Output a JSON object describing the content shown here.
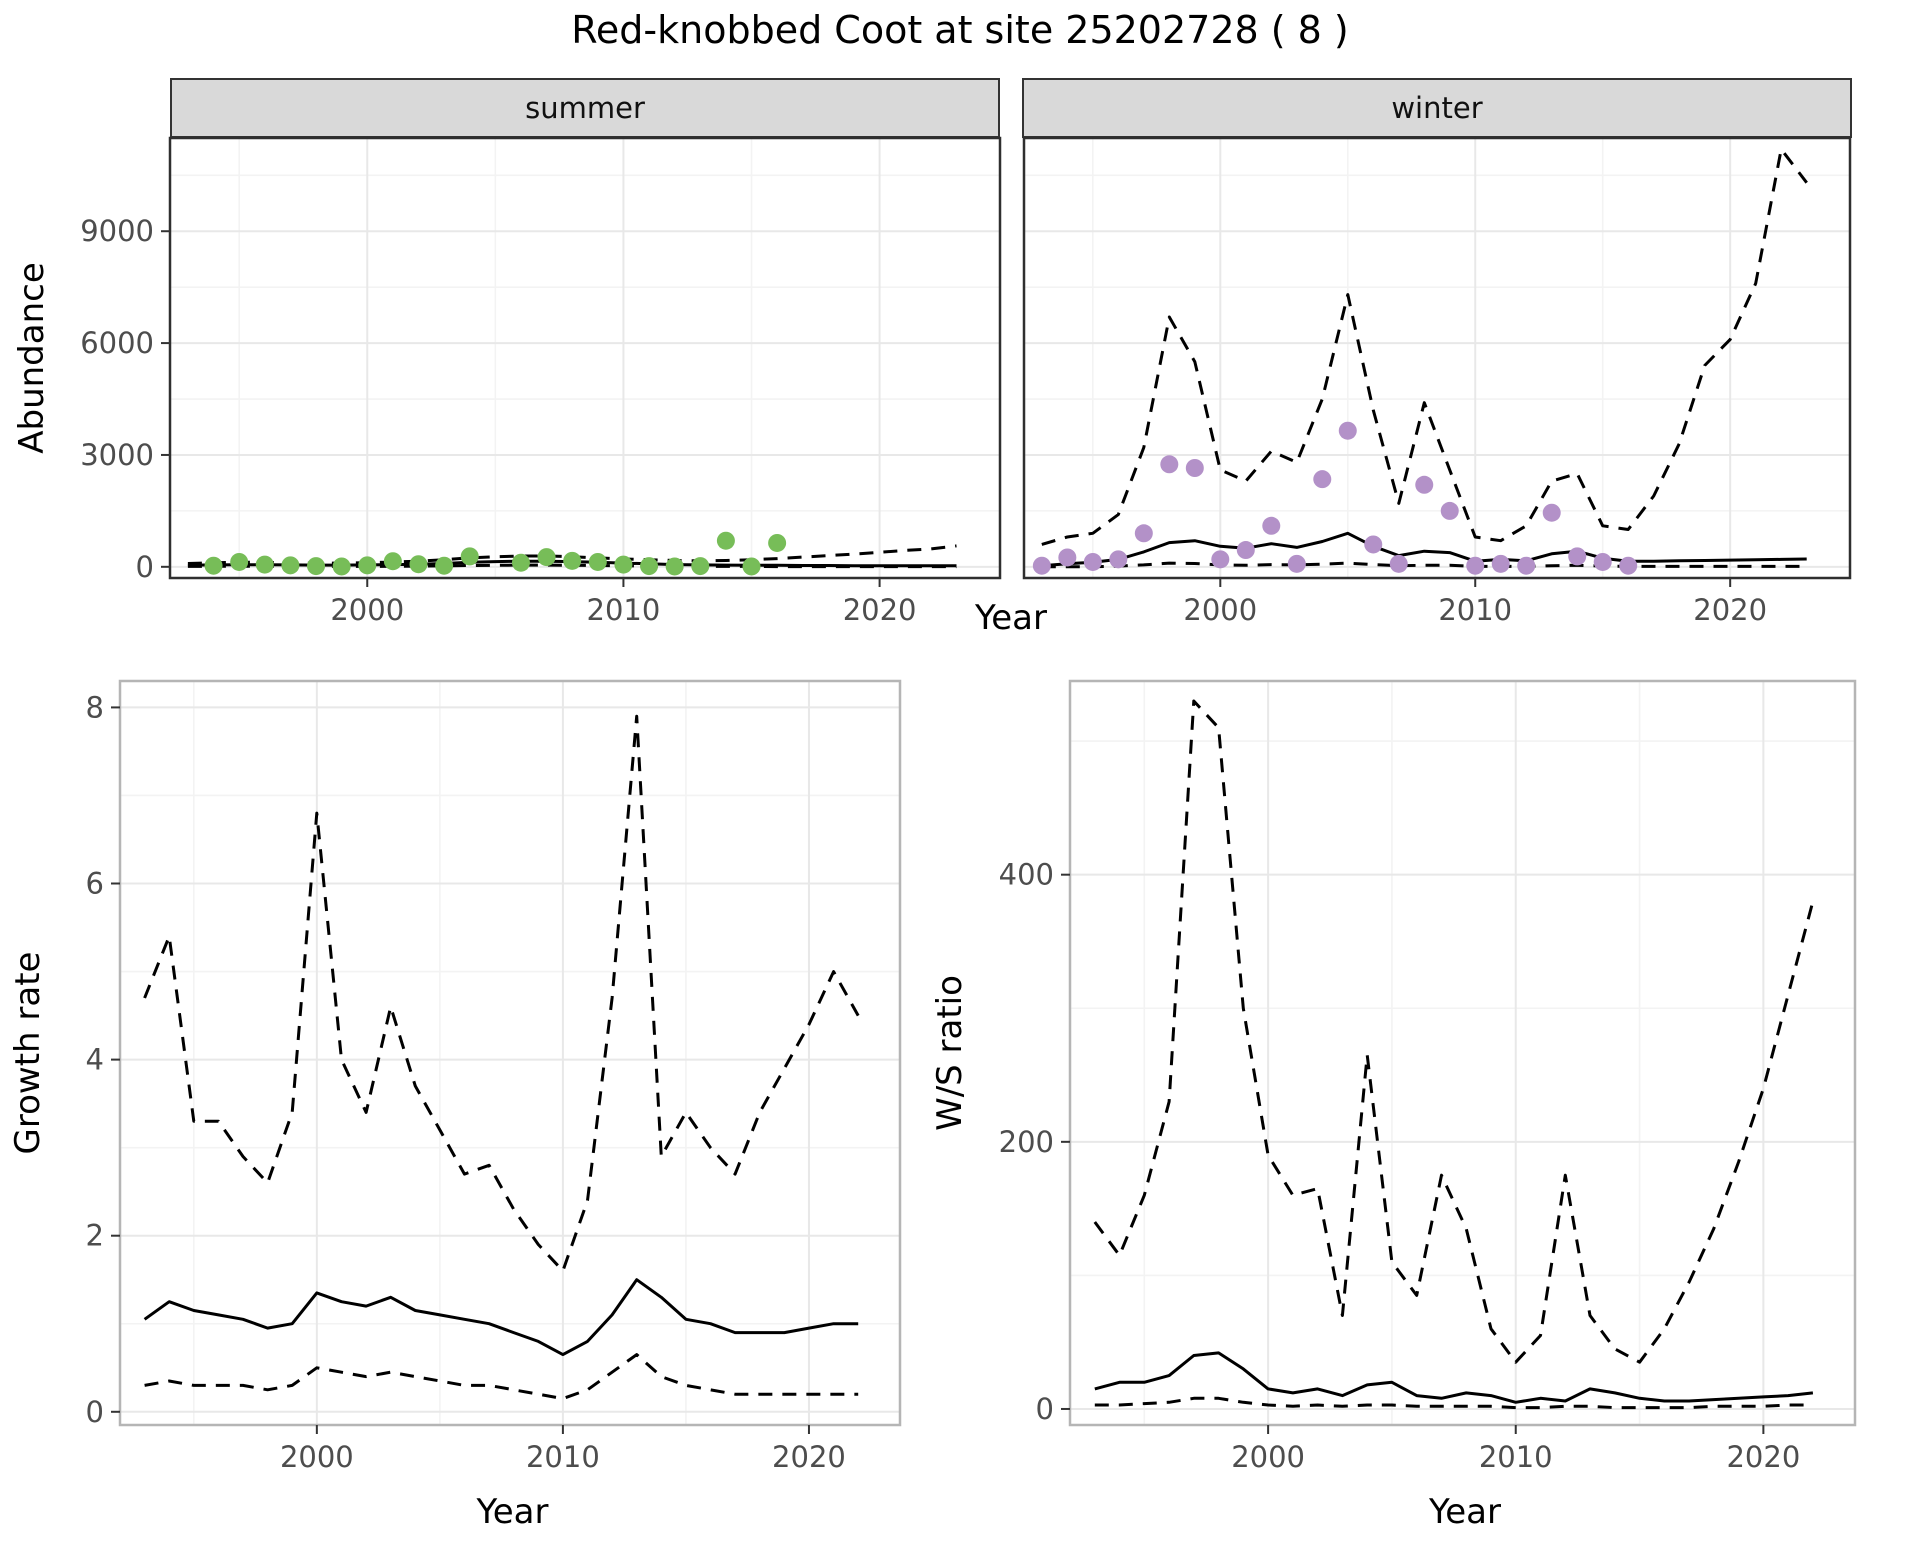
{
  "title": "Red-knobbed Coot at site 25202728 ( 8 )",
  "facets": {
    "summer": "summer",
    "winter": "winter"
  },
  "axes": {
    "abundance_label": "Abundance",
    "year_label_top": "Year",
    "year_label_growth": "Year",
    "year_label_ws": "Year",
    "growth_label": "Growth rate",
    "ws_label": "W/S ratio"
  },
  "colors": {
    "summer_points": "#77bd58",
    "winter_points": "#b391c8",
    "line": "#000000",
    "strip_bg": "#d9d9d9"
  },
  "chart_data": [
    {
      "id": "summer_abundance",
      "type": "line",
      "facet": "summer",
      "xlabel": "Year",
      "ylabel": "Abundance",
      "x_domain": [
        1992.3,
        2024.7
      ],
      "y_domain": [
        -300,
        11500
      ],
      "x_ticks": [
        2000,
        2010,
        2020
      ],
      "y_ticks": [
        0,
        3000,
        6000,
        9000
      ],
      "show_y_tick_labels": true,
      "series": [
        {
          "name": "upper_ci",
          "kind": "line",
          "dash": true,
          "color": "#000000",
          "x": [
            1993,
            1994,
            1995,
            1996,
            1997,
            1998,
            1999,
            2000,
            2001,
            2002,
            2003,
            2004,
            2005,
            2006,
            2007,
            2008,
            2009,
            2010,
            2011,
            2012,
            2013,
            2014,
            2015,
            2016,
            2017,
            2018,
            2019,
            2020,
            2021,
            2022,
            2023
          ],
          "y": [
            90,
            110,
            120,
            120,
            110,
            100,
            100,
            110,
            130,
            150,
            190,
            240,
            270,
            290,
            290,
            270,
            240,
            210,
            190,
            170,
            160,
            170,
            190,
            220,
            260,
            300,
            340,
            390,
            440,
            480,
            560
          ]
        },
        {
          "name": "lower_ci",
          "kind": "line",
          "dash": true,
          "color": "#000000",
          "x": [
            1993,
            1994,
            1995,
            1996,
            1997,
            1998,
            1999,
            2000,
            2001,
            2002,
            2003,
            2004,
            2005,
            2006,
            2007,
            2008,
            2009,
            2010,
            2011,
            2012,
            2013,
            2014,
            2015,
            2016,
            2017,
            2018,
            2019,
            2020,
            2021,
            2022,
            2023
          ],
          "y": [
            10,
            15,
            15,
            15,
            15,
            10,
            10,
            10,
            15,
            20,
            25,
            35,
            40,
            45,
            45,
            40,
            35,
            30,
            20,
            15,
            10,
            10,
            10,
            5,
            5,
            5,
            5,
            5,
            5,
            5,
            5
          ]
        },
        {
          "name": "fit",
          "kind": "line",
          "dash": false,
          "color": "#000000",
          "x": [
            1993,
            1994,
            1995,
            1996,
            1997,
            1998,
            1999,
            2000,
            2001,
            2002,
            2003,
            2004,
            2005,
            2006,
            2007,
            2008,
            2009,
            2010,
            2011,
            2012,
            2013,
            2014,
            2015,
            2016,
            2017,
            2018,
            2019,
            2020,
            2021,
            2022,
            2023
          ],
          "y": [
            40,
            50,
            55,
            55,
            50,
            45,
            45,
            50,
            60,
            70,
            90,
            120,
            140,
            150,
            150,
            140,
            120,
            100,
            80,
            60,
            50,
            45,
            40,
            40,
            35,
            35,
            30,
            30,
            30,
            30,
            30
          ]
        },
        {
          "name": "observed",
          "kind": "points",
          "color": "#77bd58",
          "x": [
            1994,
            1995,
            1996,
            1997,
            1998,
            1999,
            2000,
            2001,
            2002,
            2003,
            2004,
            2006,
            2007,
            2008,
            2009,
            2010,
            2011,
            2012,
            2013,
            2014,
            2015,
            2016
          ],
          "y": [
            30,
            130,
            60,
            40,
            20,
            10,
            40,
            150,
            70,
            30,
            280,
            110,
            260,
            160,
            130,
            60,
            20,
            10,
            20,
            700,
            10,
            640
          ]
        }
      ]
    },
    {
      "id": "winter_abundance",
      "type": "line",
      "facet": "winter",
      "xlabel": "Year",
      "ylabel": "Abundance",
      "x_domain": [
        1992.3,
        2024.7
      ],
      "y_domain": [
        -300,
        11500
      ],
      "x_ticks": [
        2000,
        2010,
        2020
      ],
      "y_ticks": [
        0,
        3000,
        6000,
        9000
      ],
      "show_y_tick_labels": false,
      "series": [
        {
          "name": "upper_ci",
          "kind": "line",
          "dash": true,
          "color": "#000000",
          "x": [
            1993,
            1994,
            1995,
            1996,
            1997,
            1998,
            1999,
            2000,
            2001,
            2002,
            2003,
            2004,
            2005,
            2006,
            2007,
            2008,
            2009,
            2010,
            2011,
            2012,
            2013,
            2014,
            2015,
            2016,
            2017,
            2018,
            2019,
            2020,
            2021,
            2022,
            2023
          ],
          "y": [
            600,
            800,
            900,
            1400,
            3200,
            6700,
            5500,
            2600,
            2300,
            3100,
            2800,
            4500,
            7300,
            4200,
            1700,
            4400,
            2600,
            800,
            700,
            1100,
            2300,
            2500,
            1100,
            1000,
            1900,
            3300,
            5400,
            6100,
            7600,
            11200,
            10300
          ]
        },
        {
          "name": "lower_ci",
          "kind": "line",
          "dash": true,
          "color": "#000000",
          "x": [
            1993,
            1994,
            1995,
            1996,
            1997,
            1998,
            1999,
            2000,
            2001,
            2002,
            2003,
            2004,
            2005,
            2006,
            2007,
            2008,
            2009,
            2010,
            2011,
            2012,
            2013,
            2014,
            2015,
            2016,
            2017,
            2018,
            2019,
            2020,
            2021,
            2022,
            2023
          ],
          "y": [
            0,
            0,
            0,
            20,
            50,
            100,
            90,
            50,
            40,
            60,
            50,
            70,
            100,
            60,
            30,
            40,
            40,
            10,
            10,
            10,
            30,
            40,
            20,
            10,
            10,
            10,
            10,
            10,
            10,
            10,
            10
          ]
        },
        {
          "name": "fit",
          "kind": "line",
          "dash": false,
          "color": "#000000",
          "x": [
            1993,
            1994,
            1995,
            1996,
            1997,
            1998,
            1999,
            2000,
            2001,
            2002,
            2003,
            2004,
            2005,
            2006,
            2007,
            2008,
            2009,
            2010,
            2011,
            2012,
            2013,
            2014,
            2015,
            2016,
            2017,
            2018,
            2019,
            2020,
            2021,
            2022,
            2023
          ],
          "y": [
            30,
            80,
            120,
            200,
            400,
            650,
            700,
            550,
            500,
            620,
            520,
            680,
            900,
            550,
            300,
            420,
            380,
            150,
            200,
            160,
            350,
            420,
            230,
            150,
            150,
            160,
            170,
            180,
            190,
            200,
            210
          ]
        },
        {
          "name": "observed",
          "kind": "points",
          "color": "#b391c8",
          "x": [
            1993,
            1994,
            1995,
            1996,
            1997,
            1998,
            1999,
            2000,
            2001,
            2002,
            2003,
            2004,
            2005,
            2006,
            2007,
            2008,
            2009,
            2010,
            2011,
            2012,
            2013,
            2014,
            2015,
            2016
          ],
          "y": [
            30,
            250,
            130,
            200,
            900,
            2750,
            2650,
            200,
            450,
            1100,
            80,
            2350,
            3650,
            600,
            80,
            2200,
            1500,
            30,
            80,
            30,
            1450,
            280,
            130,
            30
          ]
        }
      ]
    },
    {
      "id": "growth_rate",
      "type": "line",
      "xlabel": "Year",
      "ylabel": "Growth rate",
      "x_domain": [
        1992,
        2023.7
      ],
      "y_domain": [
        -0.15,
        8.3
      ],
      "x_ticks": [
        2000,
        2010,
        2020
      ],
      "y_ticks": [
        0,
        2,
        4,
        6,
        8
      ],
      "show_y_tick_labels": true,
      "series": [
        {
          "name": "upper_ci",
          "kind": "line",
          "dash": true,
          "color": "#000000",
          "x": [
            1993,
            1994,
            1995,
            1996,
            1997,
            1998,
            1999,
            2000,
            2001,
            2002,
            2003,
            2004,
            2005,
            2006,
            2007,
            2008,
            2009,
            2010,
            2011,
            2012,
            2013,
            2014,
            2015,
            2016,
            2017,
            2018,
            2019,
            2020,
            2021,
            2022
          ],
          "y": [
            4.7,
            5.4,
            3.3,
            3.3,
            2.9,
            2.6,
            3.4,
            6.8,
            4.0,
            3.4,
            4.6,
            3.7,
            3.2,
            2.7,
            2.8,
            2.3,
            1.9,
            1.6,
            2.4,
            4.7,
            7.9,
            2.9,
            3.4,
            3.0,
            2.7,
            3.4,
            3.9,
            4.4,
            5.0,
            4.5
          ]
        },
        {
          "name": "lower_ci",
          "kind": "line",
          "dash": true,
          "color": "#000000",
          "x": [
            1993,
            1994,
            1995,
            1996,
            1997,
            1998,
            1999,
            2000,
            2001,
            2002,
            2003,
            2004,
            2005,
            2006,
            2007,
            2008,
            2009,
            2010,
            2011,
            2012,
            2013,
            2014,
            2015,
            2016,
            2017,
            2018,
            2019,
            2020,
            2021,
            2022
          ],
          "y": [
            0.3,
            0.35,
            0.3,
            0.3,
            0.3,
            0.25,
            0.3,
            0.5,
            0.45,
            0.4,
            0.45,
            0.4,
            0.35,
            0.3,
            0.3,
            0.25,
            0.2,
            0.15,
            0.25,
            0.45,
            0.65,
            0.4,
            0.3,
            0.25,
            0.2,
            0.2,
            0.2,
            0.2,
            0.2,
            0.2
          ]
        },
        {
          "name": "fit",
          "kind": "line",
          "dash": false,
          "color": "#000000",
          "x": [
            1993,
            1994,
            1995,
            1996,
            1997,
            1998,
            1999,
            2000,
            2001,
            2002,
            2003,
            2004,
            2005,
            2006,
            2007,
            2008,
            2009,
            2010,
            2011,
            2012,
            2013,
            2014,
            2015,
            2016,
            2017,
            2018,
            2019,
            2020,
            2021,
            2022
          ],
          "y": [
            1.05,
            1.25,
            1.15,
            1.1,
            1.05,
            0.95,
            1.0,
            1.35,
            1.25,
            1.2,
            1.3,
            1.15,
            1.1,
            1.05,
            1.0,
            0.9,
            0.8,
            0.65,
            0.8,
            1.1,
            1.5,
            1.3,
            1.05,
            1.0,
            0.9,
            0.9,
            0.9,
            0.95,
            1.0,
            1.0
          ]
        }
      ]
    },
    {
      "id": "ws_ratio",
      "type": "line",
      "xlabel": "Year",
      "ylabel": "W/S ratio",
      "x_domain": [
        1992,
        2023.7
      ],
      "y_domain": [
        -12,
        545
      ],
      "x_ticks": [
        2000,
        2010,
        2020
      ],
      "y_ticks": [
        0,
        200,
        400
      ],
      "show_y_tick_labels": true,
      "series": [
        {
          "name": "upper_ci",
          "kind": "line",
          "dash": true,
          "color": "#000000",
          "x": [
            1993,
            1994,
            1995,
            1996,
            1997,
            1998,
            1999,
            2000,
            2001,
            2002,
            2003,
            2004,
            2005,
            2006,
            2007,
            2008,
            2009,
            2010,
            2011,
            2012,
            2013,
            2014,
            2015,
            2016,
            2017,
            2018,
            2019,
            2020,
            2021,
            2022
          ],
          "y": [
            140,
            115,
            160,
            230,
            530,
            510,
            300,
            190,
            160,
            165,
            70,
            265,
            110,
            85,
            175,
            135,
            60,
            35,
            55,
            175,
            70,
            45,
            35,
            60,
            95,
            135,
            185,
            240,
            310,
            380
          ]
        },
        {
          "name": "lower_ci",
          "kind": "line",
          "dash": true,
          "color": "#000000",
          "x": [
            1993,
            1994,
            1995,
            1996,
            1997,
            1998,
            1999,
            2000,
            2001,
            2002,
            2003,
            2004,
            2005,
            2006,
            2007,
            2008,
            2009,
            2010,
            2011,
            2012,
            2013,
            2014,
            2015,
            2016,
            2017,
            2018,
            2019,
            2020,
            2021,
            2022
          ],
          "y": [
            3,
            3,
            4,
            5,
            8,
            8,
            5,
            3,
            2,
            3,
            2,
            3,
            3,
            2,
            2,
            2,
            2,
            1,
            1,
            2,
            2,
            1,
            1,
            1,
            1,
            2,
            2,
            2,
            3,
            3
          ]
        },
        {
          "name": "fit",
          "kind": "line",
          "dash": false,
          "color": "#000000",
          "x": [
            1993,
            1994,
            1995,
            1996,
            1997,
            1998,
            1999,
            2000,
            2001,
            2002,
            2003,
            2004,
            2005,
            2006,
            2007,
            2008,
            2009,
            2010,
            2011,
            2012,
            2013,
            2014,
            2015,
            2016,
            2017,
            2018,
            2019,
            2020,
            2021,
            2022
          ],
          "y": [
            15,
            20,
            20,
            25,
            40,
            42,
            30,
            15,
            12,
            15,
            10,
            18,
            20,
            10,
            8,
            12,
            10,
            5,
            8,
            6,
            15,
            12,
            8,
            6,
            6,
            7,
            8,
            9,
            10,
            12
          ]
        }
      ]
    }
  ]
}
